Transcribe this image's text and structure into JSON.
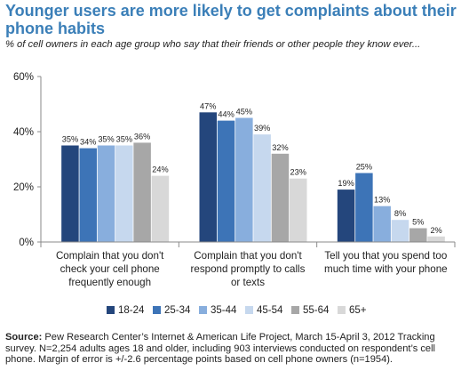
{
  "header": {
    "title": "Younger users are more likely to get complaints about their phone habits",
    "subtitle": "% of cell owners in each age group who say that their friends or other people they know ever..."
  },
  "source": {
    "label": "Source:",
    "text": "Pew Research Center’s Internet & American Life Project, March 15-April 3, 2012 Tracking survey. N=2,254 adults ages 18 and older, including 903 interviews conducted on respondent’s cell phone. Margin of error is +/-2.6 percentage points based on cell phone owners (n=1954)."
  },
  "chart_data": {
    "type": "bar",
    "categories": [
      [
        "Complain that you don't",
        "check your cell phone",
        "frequently enough"
      ],
      [
        "Complain that you don't",
        "respond promptly to calls",
        "or texts"
      ],
      [
        "Tell you that you spend too",
        "much time with your phone"
      ]
    ],
    "series": [
      {
        "name": "18-24",
        "color": "#24467c",
        "values": [
          35,
          47,
          19
        ],
        "labels": [
          "35%",
          "47%",
          "19%"
        ]
      },
      {
        "name": "25-34",
        "color": "#3d74b7",
        "values": [
          34,
          44,
          25
        ],
        "labels": [
          "34%",
          "44%",
          "25%"
        ]
      },
      {
        "name": "35-44",
        "color": "#88aedd",
        "values": [
          35,
          45,
          13
        ],
        "labels": [
          "35%",
          "45%",
          "13%"
        ]
      },
      {
        "name": "45-54",
        "color": "#c6d8ee",
        "values": [
          35,
          39,
          8
        ],
        "labels": [
          "35%",
          "39%",
          "8%"
        ]
      },
      {
        "name": "55-64",
        "color": "#a7a7a7",
        "values": [
          36,
          32,
          5
        ],
        "labels": [
          "36%",
          "32%",
          "5%"
        ]
      },
      {
        "name": "65+",
        "color": "#d8d8d8",
        "values": [
          24,
          23,
          2
        ],
        "labels": [
          "24%",
          "23%",
          "2%"
        ]
      }
    ],
    "ylim": [
      0,
      60
    ],
    "yticks": [
      0,
      20,
      40,
      60
    ],
    "ytick_labels": [
      "0%",
      "20%",
      "40%",
      "60%"
    ],
    "legend_position": "bottom",
    "grid": false
  }
}
